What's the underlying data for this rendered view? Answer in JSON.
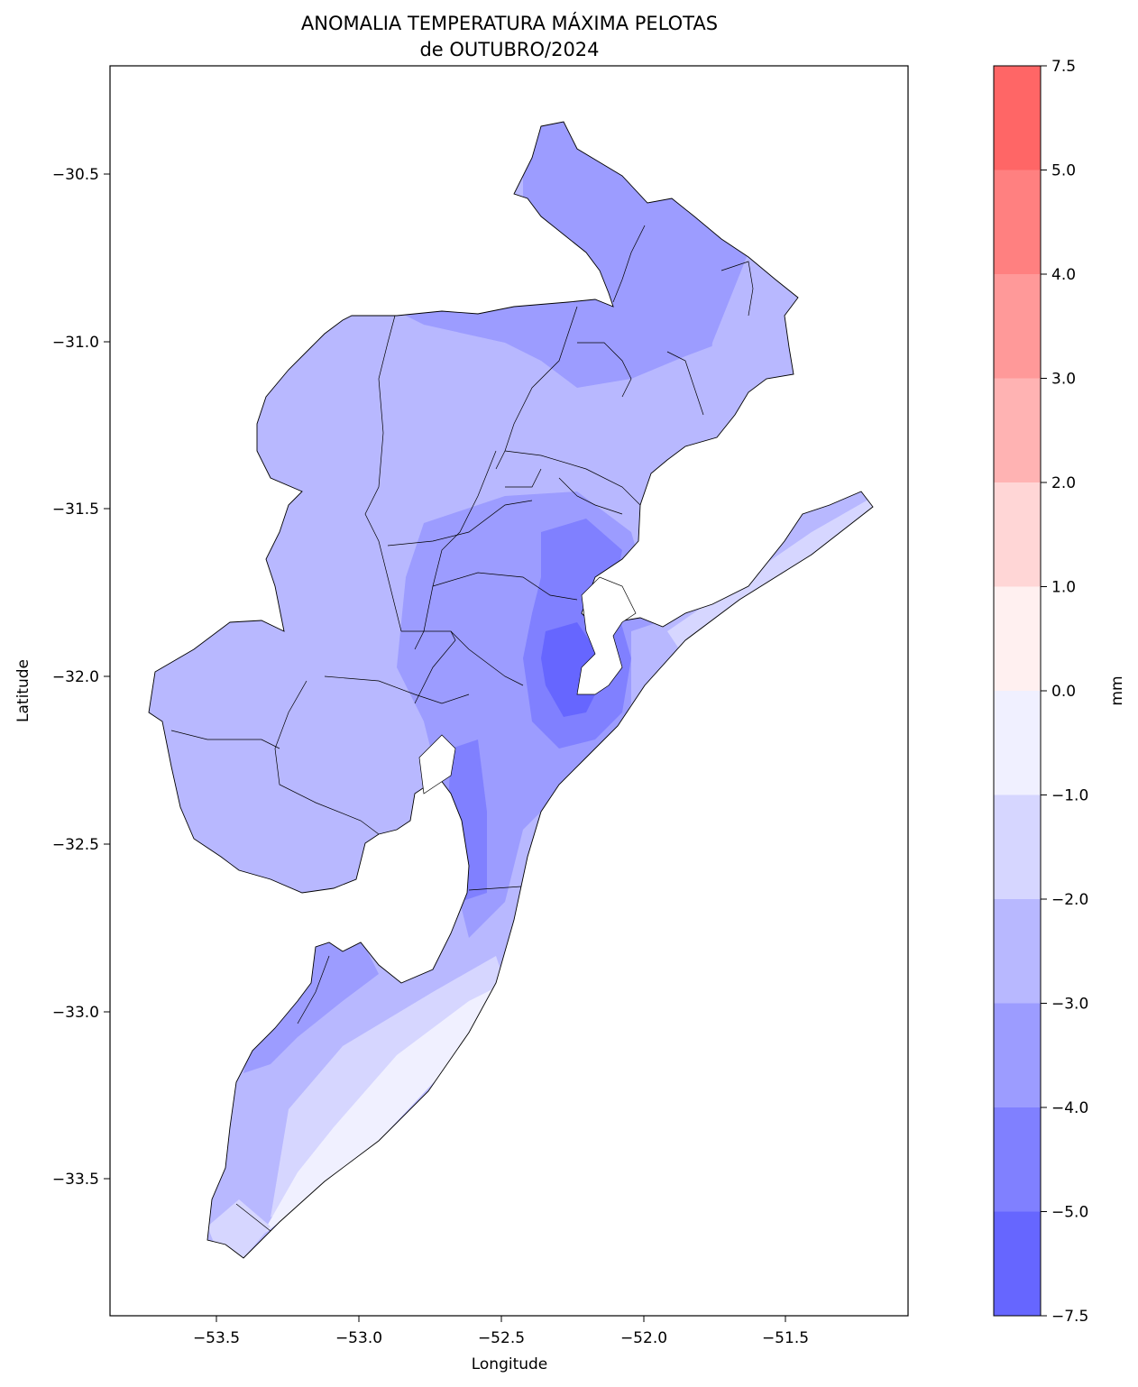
{
  "title_line1": "ANOMALIA TEMPERATURA MÁXIMA PELOTAS",
  "title_line2": "de OUTUBRO/2024",
  "map": {
    "xlabel": "Longitude",
    "ylabel": "Latitude",
    "x_ticks": [
      "−53.5",
      "−53.0",
      "−52.5",
      "−52.0",
      "−51.5"
    ],
    "y_ticks": [
      "−30.5",
      "−31.0",
      "−31.5",
      "−32.0",
      "−32.5",
      "−33.0",
      "−33.5"
    ],
    "xlim": [
      -53.87,
      -51.06
    ],
    "ylim": [
      -33.9,
      -30.18
    ]
  },
  "colorbar": {
    "label": "mm",
    "ticks": [
      "7.5",
      "5.0",
      "4.0",
      "3.0",
      "2.0",
      "1.0",
      "0.0",
      "−1.0",
      "−2.0",
      "−3.0",
      "−4.0",
      "−5.0",
      "−7.5"
    ],
    "levels": [
      {
        "range": "5.0 to 7.5",
        "color": "#ff6666"
      },
      {
        "range": "4.0 to 5.0",
        "color": "#ff8080"
      },
      {
        "range": "3.0 to 4.0",
        "color": "#ff9999"
      },
      {
        "range": "2.0 to 3.0",
        "color": "#ffb3b3"
      },
      {
        "range": "1.0 to 2.0",
        "color": "#ffd6d6"
      },
      {
        "range": "0.0 to 1.0",
        "color": "#fff0f0"
      },
      {
        "range": "-1.0 to 0.0",
        "color": "#f0f0ff"
      },
      {
        "range": "-2.0 to -1.0",
        "color": "#d6d6ff"
      },
      {
        "range": "-3.0 to -2.0",
        "color": "#b8b8ff"
      },
      {
        "range": "-4.0 to -3.0",
        "color": "#9c9cff"
      },
      {
        "range": "-5.0 to -4.0",
        "color": "#8080ff"
      },
      {
        "range": "-7.5 to -5.0",
        "color": "#6666ff"
      }
    ]
  }
}
